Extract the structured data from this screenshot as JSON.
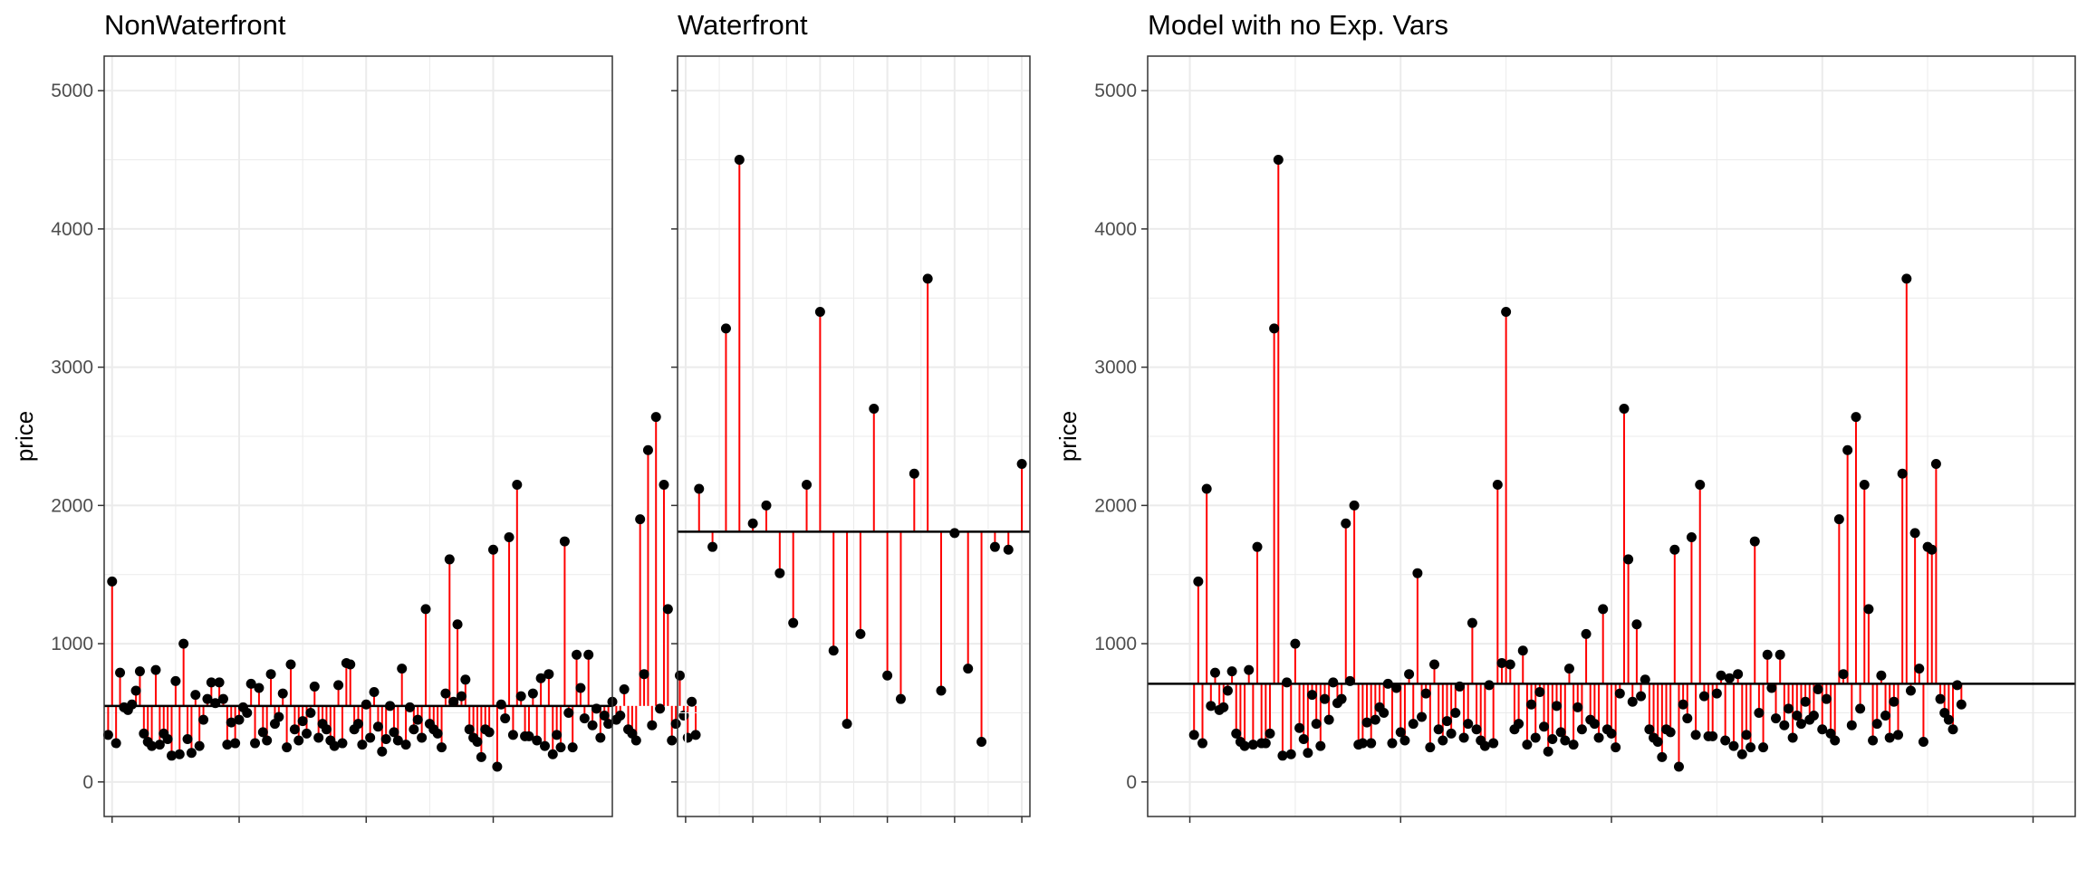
{
  "colors": {
    "residual_segment": "#ff0000",
    "point": "#000000",
    "mean_line": "#000000",
    "grid": "#ebebeb",
    "panel_border": "#333333",
    "tick_label": "#4d4d4d"
  },
  "chart_data": [
    {
      "type": "scatter",
      "title": "NonWaterfront",
      "xlabel": "",
      "ylabel": "price",
      "xlim": [
        0,
        128
      ],
      "ylim": [
        -250,
        5250
      ],
      "y_ticks": [
        0,
        1000,
        2000,
        3000,
        4000,
        5000
      ],
      "x_ticks_labeled": false,
      "grid": true,
      "mean": 550,
      "values": [
        340,
        1450,
        280,
        790,
        540,
        520,
        560,
        660,
        800,
        350,
        290,
        260,
        810,
        270,
        350,
        310,
        190,
        730,
        200,
        1000,
        310,
        210,
        630,
        260,
        450,
        600,
        720,
        570,
        720,
        600,
        270,
        430,
        280,
        450,
        540,
        500,
        710,
        280,
        680,
        360,
        300,
        780,
        420,
        470,
        640,
        250,
        850,
        380,
        300,
        440,
        350,
        500,
        690,
        320,
        420,
        380,
        300,
        260,
        700,
        280,
        860,
        850,
        380,
        420,
        270,
        560,
        320,
        650,
        400,
        220,
        310,
        550,
        360,
        300,
        820,
        270,
        540,
        380,
        450,
        320,
        1250,
        420,
        380,
        350,
        250,
        640,
        1610,
        580,
        1140,
        620,
        740,
        380,
        320,
        290,
        180,
        380,
        360,
        1680,
        110,
        560,
        460,
        1770,
        340,
        2150,
        620,
        330,
        330,
        640,
        300,
        750,
        260,
        780,
        200,
        340,
        250,
        1740,
        500,
        250,
        920,
        680,
        460,
        920,
        410,
        530,
        320,
        480,
        420,
        580,
        450,
        480,
        670,
        380,
        350,
        300,
        1900,
        780,
        2400,
        410,
        2640,
        530,
        2150,
        1250,
        300,
        420,
        770,
        480,
        320,
        580,
        340
      ]
    },
    {
      "type": "scatter",
      "title": "Waterfront",
      "xlabel": "",
      "ylabel": "",
      "xlim": [
        -0.6,
        25.6
      ],
      "ylim": [
        -250,
        5250
      ],
      "y_ticks": [
        0,
        1000,
        2000,
        3000,
        4000,
        5000
      ],
      "x_ticks_labeled": false,
      "grid": true,
      "mean": 1810,
      "values": [
        2120,
        1700,
        3280,
        4500,
        1870,
        2000,
        1510,
        1150,
        2150,
        3400,
        950,
        420,
        1070,
        2700,
        770,
        600,
        2230,
        3640,
        660,
        1800,
        820,
        290,
        1700,
        1680,
        2300
      ]
    },
    {
      "type": "scatter",
      "title": "Model with no Exp. Vars",
      "xlabel": "",
      "ylabel": "price",
      "xlim": [
        -10,
        210
      ],
      "ylim": [
        -250,
        5250
      ],
      "y_ticks": [
        0,
        1000,
        2000,
        3000,
        4000,
        5000
      ],
      "x_ticks_labeled": false,
      "grid": true,
      "mean": 710,
      "values": [
        340,
        1450,
        280,
        2120,
        550,
        790,
        520,
        540,
        660,
        800,
        350,
        290,
        260,
        810,
        270,
        1700,
        280,
        280,
        350,
        3280,
        4500,
        190,
        720,
        200,
        1000,
        390,
        310,
        210,
        630,
        420,
        260,
        600,
        450,
        720,
        570,
        600,
        1870,
        730,
        2000,
        270,
        280,
        430,
        280,
        450,
        540,
        500,
        710,
        280,
        680,
        360,
        300,
        780,
        420,
        1510,
        470,
        640,
        250,
        850,
        380,
        300,
        440,
        350,
        500,
        690,
        320,
        420,
        1150,
        380,
        300,
        260,
        700,
        280,
        2150,
        860,
        3400,
        850,
        380,
        420,
        950,
        270,
        560,
        320,
        650,
        400,
        220,
        310,
        550,
        360,
        300,
        820,
        270,
        540,
        380,
        1070,
        450,
        420,
        320,
        1250,
        380,
        350,
        250,
        640,
        2700,
        1610,
        580,
        1140,
        620,
        740,
        380,
        320,
        290,
        180,
        380,
        360,
        1680,
        110,
        560,
        460,
        1770,
        340,
        2150,
        620,
        330,
        330,
        640,
        770,
        300,
        750,
        260,
        780,
        200,
        340,
        250,
        1740,
        500,
        250,
        920,
        680,
        460,
        920,
        410,
        530,
        320,
        480,
        420,
        580,
        450,
        480,
        670,
        380,
        600,
        350,
        300,
        1900,
        780,
        2400,
        410,
        2640,
        530,
        2150,
        1250,
        300,
        420,
        770,
        480,
        320,
        580,
        340,
        2230,
        3640,
        660,
        1800,
        820,
        290,
        1700,
        1680,
        2300,
        600,
        500,
        450,
        380,
        700,
        560
      ]
    }
  ]
}
